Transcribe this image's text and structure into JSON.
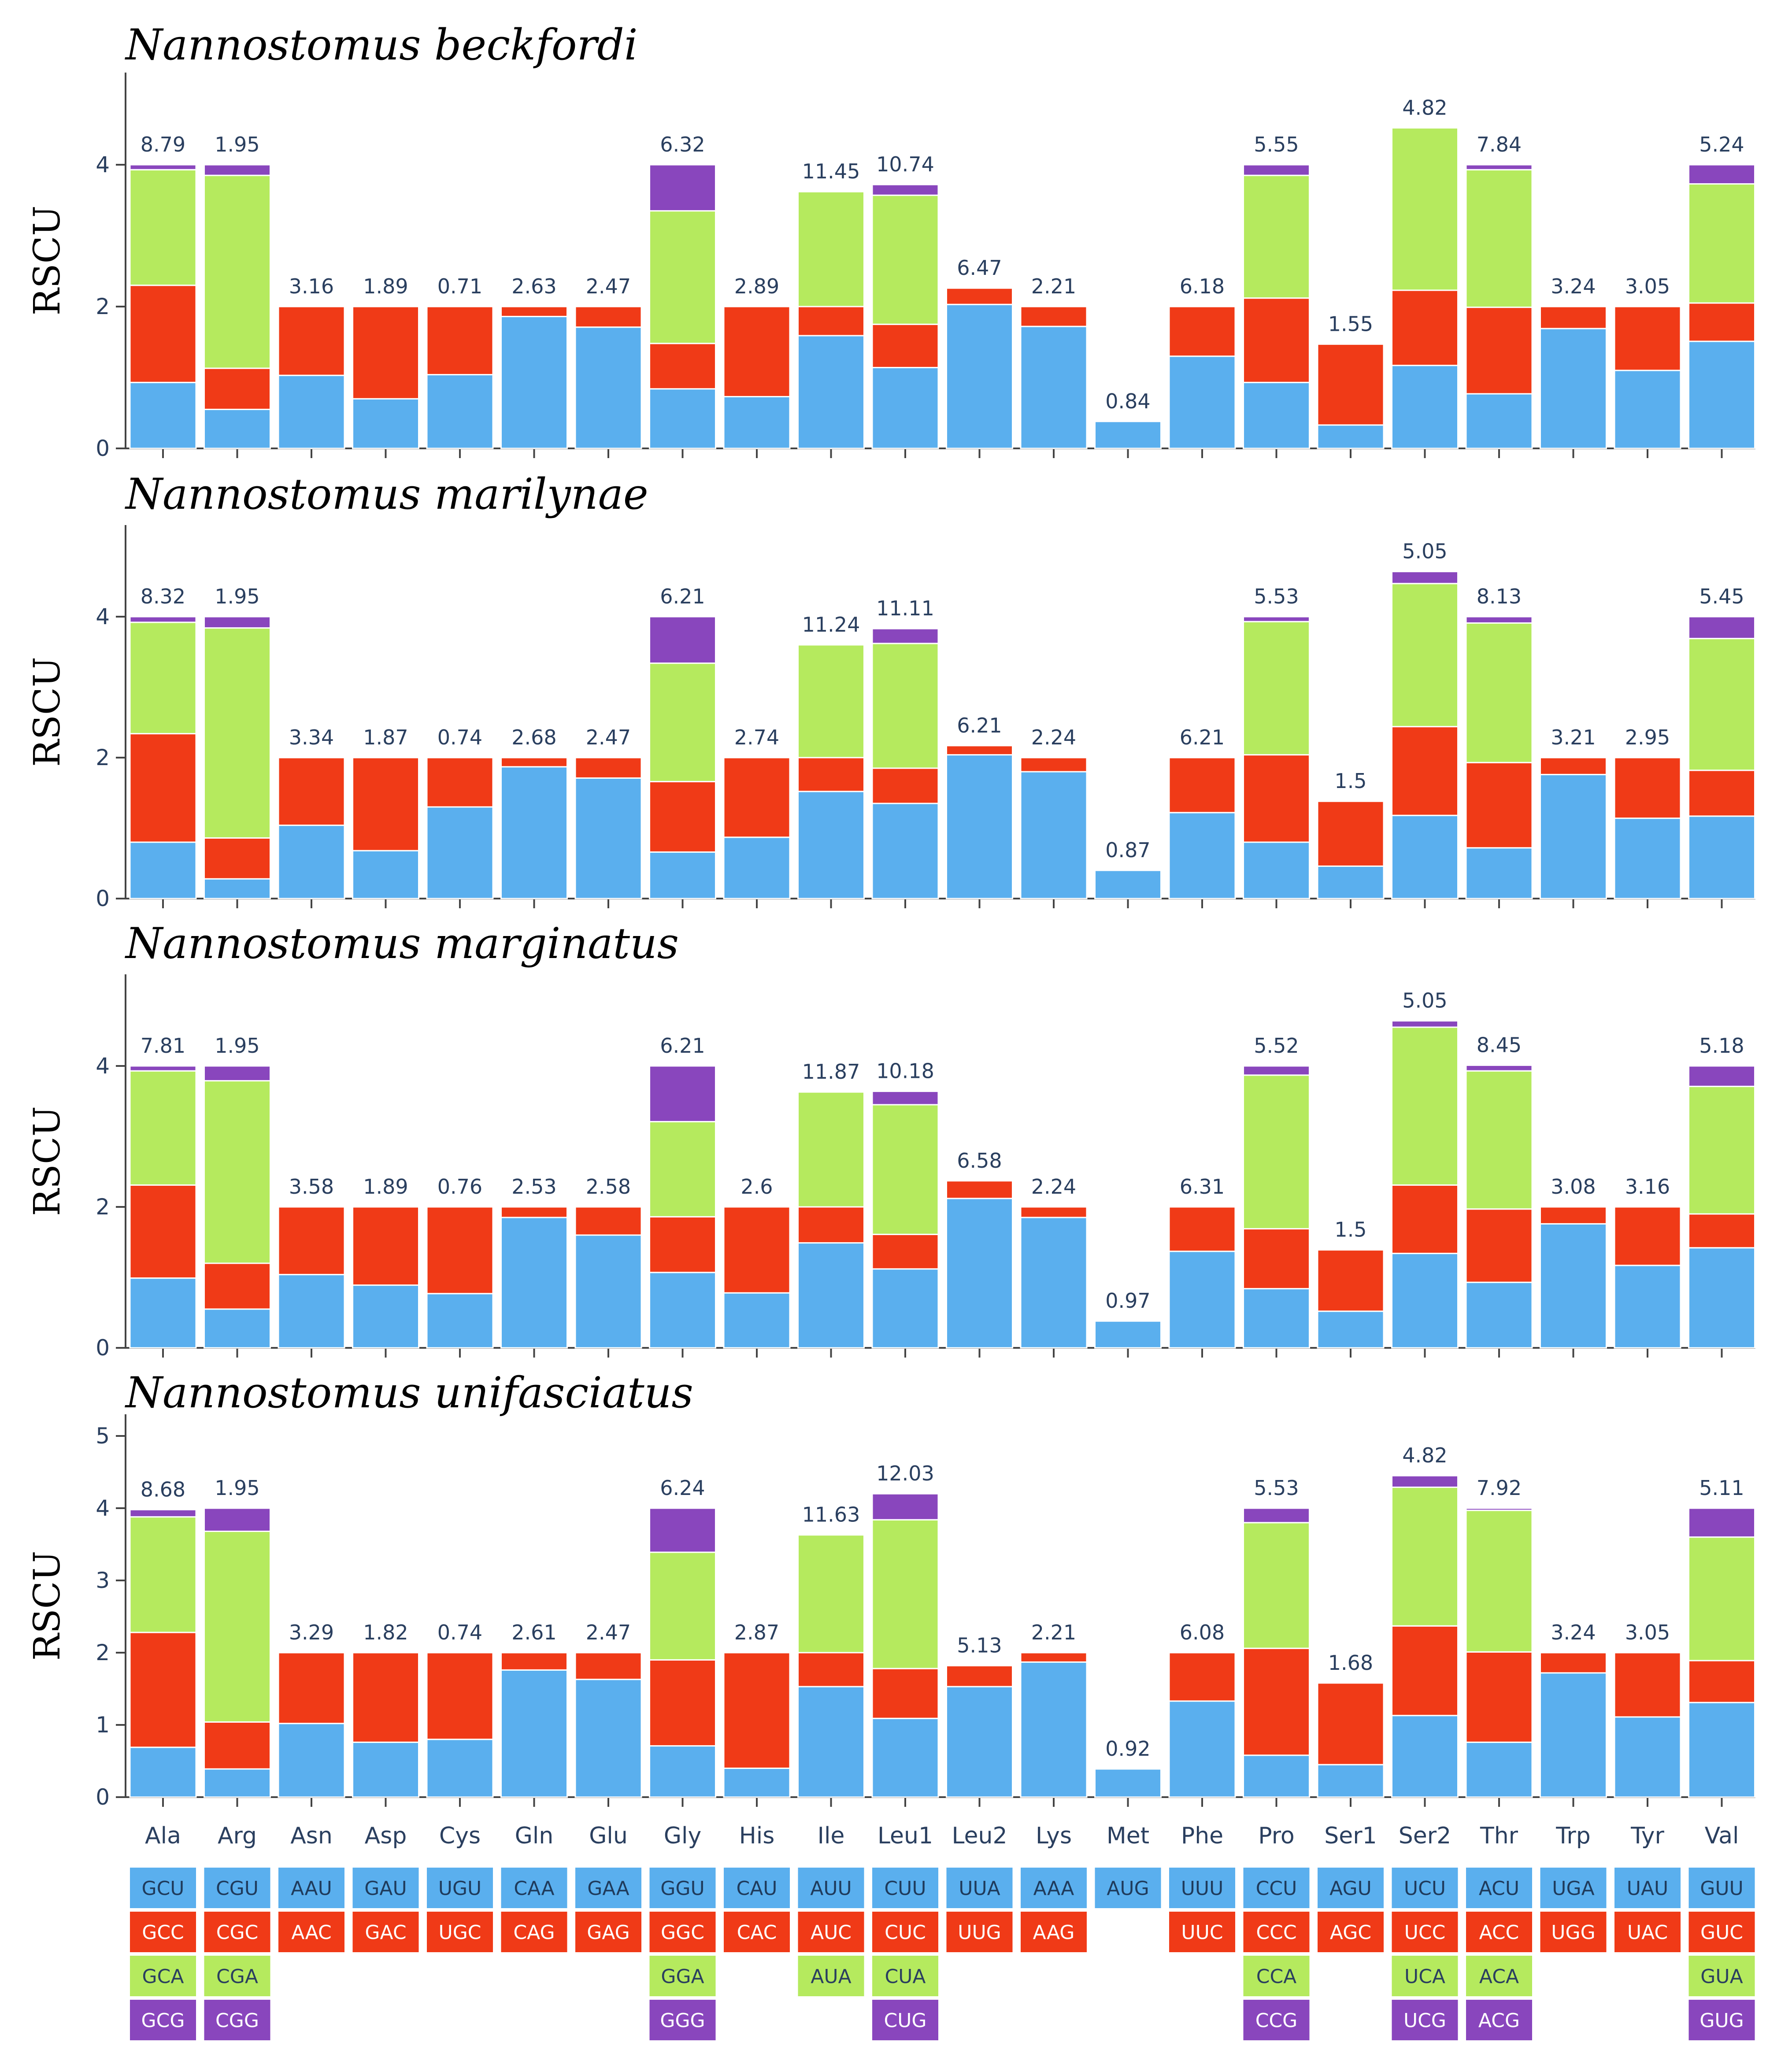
{
  "chart_data": {
    "type": "bar",
    "stacked": true,
    "ylabel": "RSCU",
    "categories": [
      "Ala",
      "Arg",
      "Asn",
      "Asp",
      "Cys",
      "Gln",
      "Glu",
      "Gly",
      "His",
      "Ile",
      "Leu1",
      "Leu2",
      "Lys",
      "Met",
      "Phe",
      "Pro",
      "Ser1",
      "Ser2",
      "Thr",
      "Trp",
      "Tyr",
      "Val"
    ],
    "colors": [
      "#5aafee",
      "#f03a17",
      "#b5ea5e",
      "#8946bd"
    ],
    "codon_text_colors": [
      "#1f3b5c",
      "#ffffff",
      "#2a3f5f",
      "#ffffff"
    ],
    "codons": [
      [
        "GCU",
        "GCC",
        "GCA",
        "GCG"
      ],
      [
        "CGU",
        "CGC",
        "CGA",
        "CGG"
      ],
      [
        "AAU",
        "AAC"
      ],
      [
        "GAU",
        "GAC"
      ],
      [
        "UGU",
        "UGC"
      ],
      [
        "CAA",
        "CAG"
      ],
      [
        "GAA",
        "GAG"
      ],
      [
        "GGU",
        "GGC",
        "GGA",
        "GGG"
      ],
      [
        "CAU",
        "CAC"
      ],
      [
        "AUU",
        "AUC",
        "AUA"
      ],
      [
        "CUU",
        "CUC",
        "CUA",
        "CUG"
      ],
      [
        "UUA",
        "UUG"
      ],
      [
        "AAA",
        "AAG"
      ],
      [
        "AUG"
      ],
      [
        "UUU",
        "UUC"
      ],
      [
        "CCU",
        "CCC",
        "CCA",
        "CCG"
      ],
      [
        "AGU",
        "AGC"
      ],
      [
        "UCU",
        "UCC",
        "UCA",
        "UCG"
      ],
      [
        "ACU",
        "ACC",
        "ACA",
        "ACG"
      ],
      [
        "UGA",
        "UGG"
      ],
      [
        "UAU",
        "UAC"
      ],
      [
        "GUU",
        "GUC",
        "GUA",
        "GUG"
      ]
    ],
    "panels": [
      {
        "title": "Nannostomus beckfordi",
        "ylim": [
          0,
          5.3
        ],
        "yticks": [
          0,
          2,
          4
        ],
        "totals": [
          "8.79",
          "1.95",
          "3.16",
          "1.89",
          "0.71",
          "2.63",
          "2.47",
          "6.32",
          "2.89",
          "11.45",
          "10.74",
          "6.47",
          "2.21",
          "0.84",
          "6.18",
          "5.55",
          "1.55",
          "4.82",
          "7.84",
          "3.24",
          "3.05",
          "5.24"
        ],
        "stacks": [
          [
            0.93,
            1.37,
            1.63,
            0.07
          ],
          [
            0.55,
            0.58,
            2.72,
            0.15
          ],
          [
            1.03,
            0.97
          ],
          [
            0.7,
            1.3
          ],
          [
            1.04,
            0.96
          ],
          [
            1.86,
            0.14
          ],
          [
            1.71,
            0.29
          ],
          [
            0.84,
            0.64,
            1.87,
            0.65
          ],
          [
            0.73,
            1.27
          ],
          [
            1.59,
            0.41,
            1.62
          ],
          [
            1.14,
            0.61,
            1.82,
            0.15
          ],
          [
            2.03,
            0.23
          ],
          [
            1.72,
            0.28
          ],
          [
            0.38
          ],
          [
            1.3,
            0.7
          ],
          [
            0.93,
            1.19,
            1.73,
            0.15
          ],
          [
            0.33,
            1.14
          ],
          [
            1.17,
            1.06,
            2.29,
            0.0
          ],
          [
            0.77,
            1.22,
            1.94,
            0.07
          ],
          [
            1.69,
            0.31
          ],
          [
            1.1,
            0.9
          ],
          [
            1.51,
            0.54,
            1.68,
            0.27
          ]
        ]
      },
      {
        "title": "Nannostomus marilynae",
        "ylim": [
          0,
          5.3
        ],
        "yticks": [
          0,
          2,
          4
        ],
        "totals": [
          "8.32",
          "1.95",
          "3.34",
          "1.87",
          "0.74",
          "2.68",
          "2.47",
          "6.21",
          "2.74",
          "11.24",
          "11.11",
          "6.21",
          "2.24",
          "0.87",
          "6.21",
          "5.53",
          "1.5",
          "5.05",
          "8.13",
          "3.21",
          "2.95",
          "5.45"
        ],
        "stacks": [
          [
            0.8,
            1.54,
            1.58,
            0.08
          ],
          [
            0.28,
            0.58,
            2.98,
            0.16
          ],
          [
            1.04,
            0.96
          ],
          [
            0.68,
            1.32
          ],
          [
            1.3,
            0.7
          ],
          [
            1.87,
            0.13
          ],
          [
            1.71,
            0.29
          ],
          [
            0.66,
            1.0,
            1.68,
            0.66
          ],
          [
            0.87,
            1.13
          ],
          [
            1.52,
            0.48,
            1.6
          ],
          [
            1.35,
            0.5,
            1.77,
            0.21
          ],
          [
            2.04,
            0.13
          ],
          [
            1.8,
            0.2
          ],
          [
            0.4
          ],
          [
            1.22,
            0.78
          ],
          [
            0.8,
            1.24,
            1.89,
            0.07
          ],
          [
            0.46,
            0.92
          ],
          [
            1.18,
            1.26,
            2.03,
            0.17
          ],
          [
            0.72,
            1.21,
            1.98,
            0.09
          ],
          [
            1.76,
            0.24
          ],
          [
            1.14,
            0.86
          ],
          [
            1.17,
            0.65,
            1.87,
            0.31
          ]
        ]
      },
      {
        "title": "Nannostomus marginatus",
        "ylim": [
          0,
          5.3
        ],
        "yticks": [
          0,
          2,
          4
        ],
        "totals": [
          "7.81",
          "1.95",
          "3.58",
          "1.89",
          "0.76",
          "2.53",
          "2.58",
          "6.21",
          "2.6",
          "11.87",
          "10.18",
          "6.58",
          "2.24",
          "0.97",
          "6.31",
          "5.52",
          "1.5",
          "5.05",
          "8.45",
          "3.08",
          "3.16",
          "5.18"
        ],
        "stacks": [
          [
            0.99,
            1.32,
            1.62,
            0.07
          ],
          [
            0.55,
            0.65,
            2.59,
            0.21
          ],
          [
            1.04,
            0.96
          ],
          [
            0.89,
            1.11
          ],
          [
            0.77,
            1.23
          ],
          [
            1.85,
            0.15
          ],
          [
            1.6,
            0.4
          ],
          [
            1.07,
            0.79,
            1.35,
            0.79
          ],
          [
            0.78,
            1.22
          ],
          [
            1.49,
            0.51,
            1.63
          ],
          [
            1.12,
            0.49,
            1.84,
            0.19
          ],
          [
            2.12,
            0.25
          ],
          [
            1.85,
            0.15
          ],
          [
            0.38
          ],
          [
            1.37,
            0.63
          ],
          [
            0.84,
            0.85,
            2.18,
            0.13
          ],
          [
            0.52,
            0.87
          ],
          [
            1.34,
            0.97,
            2.24,
            0.09
          ],
          [
            0.93,
            1.04,
            1.96,
            0.08
          ],
          [
            1.76,
            0.24
          ],
          [
            1.17,
            0.83
          ],
          [
            1.42,
            0.48,
            1.81,
            0.29
          ]
        ]
      },
      {
        "title": "Nannostomus unifasciatus",
        "ylim": [
          0,
          5.3
        ],
        "yticks": [
          0,
          1,
          2,
          3,
          4,
          5
        ],
        "totals": [
          "8.68",
          "1.95",
          "3.29",
          "1.82",
          "0.74",
          "2.61",
          "2.47",
          "6.24",
          "2.87",
          "11.63",
          "12.03",
          "5.13",
          "2.21",
          "0.92",
          "6.08",
          "5.53",
          "1.68",
          "4.82",
          "7.92",
          "3.24",
          "3.05",
          "5.11"
        ],
        "stacks": [
          [
            0.69,
            1.59,
            1.6,
            0.1
          ],
          [
            0.39,
            0.65,
            2.64,
            0.32
          ],
          [
            1.02,
            0.98
          ],
          [
            0.76,
            1.24
          ],
          [
            0.8,
            1.2
          ],
          [
            1.76,
            0.24
          ],
          [
            1.63,
            0.37
          ],
          [
            0.71,
            1.19,
            1.49,
            0.61
          ],
          [
            0.4,
            1.6
          ],
          [
            1.53,
            0.47,
            1.63
          ],
          [
            1.09,
            0.69,
            2.06,
            0.36
          ],
          [
            1.53,
            0.29
          ],
          [
            1.87,
            0.13
          ],
          [
            0.39
          ],
          [
            1.33,
            0.67
          ],
          [
            0.58,
            1.48,
            1.74,
            0.2
          ],
          [
            0.45,
            1.13
          ],
          [
            1.13,
            1.24,
            1.92,
            0.16
          ],
          [
            0.76,
            1.25,
            1.96,
            0.03
          ],
          [
            1.72,
            0.28
          ],
          [
            1.11,
            0.89
          ],
          [
            1.31,
            0.58,
            1.71,
            0.4
          ]
        ]
      }
    ]
  }
}
